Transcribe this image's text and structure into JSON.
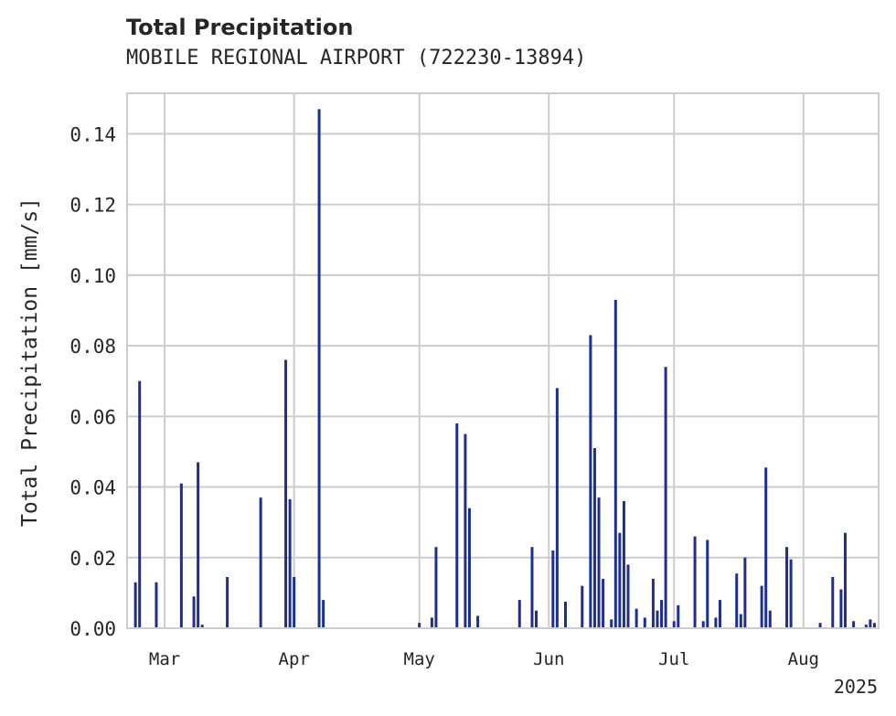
{
  "chart_data": {
    "type": "bar",
    "title": "Total Precipitation",
    "subtitle": "MOBILE REGIONAL AIRPORT (722230-13894)",
    "xlabel": "",
    "ylabel": "Total Precipitation [mm/s]",
    "ylim": [
      0,
      0.1515
    ],
    "yticks": [
      "0.00",
      "0.02",
      "0.04",
      "0.06",
      "0.08",
      "0.10",
      "0.12",
      "0.14"
    ],
    "xlim": [
      "2025-02-20",
      "2025-08-19"
    ],
    "xticks": [
      {
        "date": "2025-03-01",
        "label": "Mar"
      },
      {
        "date": "2025-04-01",
        "label": "Apr"
      },
      {
        "date": "2025-05-01",
        "label": "May"
      },
      {
        "date": "2025-06-01",
        "label": "Jun"
      },
      {
        "date": "2025-07-01",
        "label": "Jul"
      },
      {
        "date": "2025-08-01",
        "label": "Aug"
      }
    ],
    "year_label": "2025",
    "grid": true,
    "bar_color": "#1f2f8f",
    "x": [
      "2025-02-22",
      "2025-02-23",
      "2025-02-27",
      "2025-03-05",
      "2025-03-08",
      "2025-03-09",
      "2025-03-10",
      "2025-03-16",
      "2025-03-24",
      "2025-03-30",
      "2025-03-31",
      "2025-04-01",
      "2025-04-07",
      "2025-04-08",
      "2025-05-01",
      "2025-05-04",
      "2025-05-05",
      "2025-05-10",
      "2025-05-12",
      "2025-05-13",
      "2025-05-15",
      "2025-05-25",
      "2025-05-28",
      "2025-05-29",
      "2025-06-02",
      "2025-06-03",
      "2025-06-05",
      "2025-06-09",
      "2025-06-11",
      "2025-06-12",
      "2025-06-13",
      "2025-06-14",
      "2025-06-16",
      "2025-06-17",
      "2025-06-18",
      "2025-06-19",
      "2025-06-20",
      "2025-06-22",
      "2025-06-24",
      "2025-06-26",
      "2025-06-27",
      "2025-06-28",
      "2025-06-29",
      "2025-07-01",
      "2025-07-02",
      "2025-07-06",
      "2025-07-08",
      "2025-07-09",
      "2025-07-11",
      "2025-07-12",
      "2025-07-16",
      "2025-07-17",
      "2025-07-18",
      "2025-07-22",
      "2025-07-23",
      "2025-07-24",
      "2025-07-28",
      "2025-07-29",
      "2025-08-05",
      "2025-08-08",
      "2025-08-10",
      "2025-08-11",
      "2025-08-13",
      "2025-08-16",
      "2025-08-17",
      "2025-08-18"
    ],
    "values": [
      0.013,
      0.07,
      0.013,
      0.041,
      0.009,
      0.047,
      0.001,
      0.0145,
      0.037,
      0.076,
      0.0365,
      0.0145,
      0.147,
      0.008,
      0.0015,
      0.003,
      0.023,
      0.058,
      0.055,
      0.034,
      0.0035,
      0.008,
      0.023,
      0.005,
      0.022,
      0.068,
      0.0075,
      0.012,
      0.083,
      0.051,
      0.037,
      0.014,
      0.0025,
      0.093,
      0.027,
      0.036,
      0.018,
      0.0055,
      0.003,
      0.014,
      0.005,
      0.008,
      0.074,
      0.002,
      0.0065,
      0.026,
      0.002,
      0.025,
      0.003,
      0.008,
      0.0155,
      0.004,
      0.02,
      0.012,
      0.0455,
      0.005,
      0.023,
      0.0195,
      0.0015,
      0.0145,
      0.011,
      0.027,
      0.002,
      0.001,
      0.0025,
      0.0015
    ]
  }
}
